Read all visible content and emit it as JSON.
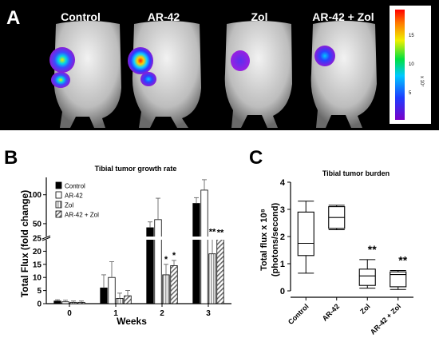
{
  "panel_a": {
    "letter": "A",
    "labels": [
      "Control",
      "AR-42",
      "Zol",
      "AR-42 + Zol"
    ],
    "colorbar": {
      "ticks": [
        "15",
        "10",
        "5"
      ],
      "unit": "x 10⁷"
    }
  },
  "chart_data": [
    {
      "panel": "B",
      "type": "bar",
      "title": "Tibial tumor growth rate",
      "xlabel": "Weeks",
      "ylabel": "Total Flux (fold change)",
      "categories": [
        "0",
        "1",
        "2",
        "3"
      ],
      "y_axis": "broken",
      "lower_segment": {
        "range": [
          0,
          25
        ],
        "ticks": [
          0,
          5,
          10,
          15,
          20,
          25
        ]
      },
      "upper_segment": {
        "range": [
          25,
          130
        ],
        "ticks": [
          50,
          100
        ]
      },
      "yticks": [
        0,
        5,
        10,
        15,
        20,
        25,
        50,
        100
      ],
      "series": [
        {
          "name": "Control",
          "fill": "solid black",
          "values": [
            1,
            6,
            43,
            85
          ],
          "errors": [
            0.5,
            5,
            10,
            10
          ]
        },
        {
          "name": "AR-42",
          "fill": "white",
          "values": [
            0.7,
            10,
            57,
            108
          ],
          "errors": [
            0.6,
            6,
            37,
            18
          ]
        },
        {
          "name": "Zol",
          "fill": "grey vertical stripes",
          "values": [
            0.5,
            2,
            11,
            19
          ],
          "errors": [
            0.5,
            2,
            4,
            8
          ]
        },
        {
          "name": "AR-42 + Zol",
          "fill": "diagonal hatch",
          "values": [
            0.5,
            3,
            14.5,
            25
          ],
          "errors": [
            0.5,
            2,
            2,
            1
          ]
        }
      ],
      "annotations": [
        {
          "category": "2",
          "series": "Zol",
          "text": "*"
        },
        {
          "category": "2",
          "series": "AR-42 + Zol",
          "text": "*"
        },
        {
          "category": "3",
          "series": "Zol",
          "text": "**"
        },
        {
          "category": "3",
          "series": "AR-42 + Zol",
          "text": "**"
        }
      ],
      "legend_position": "top-left"
    },
    {
      "panel": "C",
      "type": "box",
      "title": "Tibial tumor burden",
      "ylabel_line1": "Total flux x 10⁸",
      "ylabel_line2": "(photons/second)",
      "ylim": [
        0,
        4
      ],
      "yticks": [
        0,
        1,
        2,
        3,
        4
      ],
      "categories": [
        "Control",
        "AR-42",
        "Zol",
        "AR-42 + Zol"
      ],
      "boxes": [
        {
          "min": 0.65,
          "q1": 1.3,
          "median": 1.75,
          "q3": 2.9,
          "max": 3.3
        },
        {
          "min": 2.25,
          "q1": 2.3,
          "median": 2.7,
          "q3": 3.1,
          "max": 3.15
        },
        {
          "min": 0.1,
          "q1": 0.2,
          "median": 0.55,
          "q3": 0.8,
          "max": 1.15
        },
        {
          "min": 0.05,
          "q1": 0.15,
          "median": 0.6,
          "q3": 0.7,
          "max": 0.75
        }
      ],
      "annotations": [
        {
          "category": "Zol",
          "text": "**"
        },
        {
          "category": "AR-42 + Zol",
          "text": "**"
        }
      ]
    }
  ],
  "panel_letters": {
    "b": "B",
    "c": "C"
  }
}
